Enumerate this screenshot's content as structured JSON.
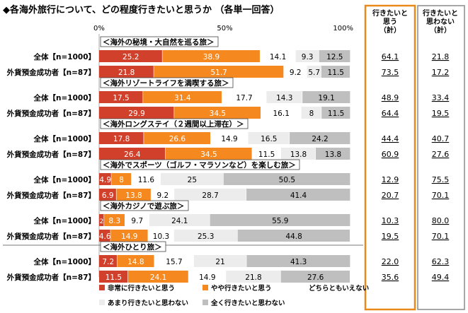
{
  "title": "◆各海外旅行について、どの程度行きたいと思うか （各単一回答）",
  "column_headers": {
    "want": [
      "行きたいと",
      "思う",
      "（計）"
    ],
    "not_want": [
      "行きたいと",
      "思わない",
      "（計）"
    ]
  },
  "colors": {
    "very_want": "#d0402b",
    "somewhat_want": "#f5891f",
    "neutral": "#ffffff",
    "not_much": "#ececec",
    "not_at_all": "#bfbfbf",
    "want_box": "#e8891a",
    "not_want_box": "#8a8a8a"
  },
  "chart_data": {
    "type": "bar",
    "orientation": "horizontal",
    "stacked": "percent",
    "xlim": [
      0,
      100
    ],
    "x_ticks": [
      "0%",
      "50%",
      "100%"
    ],
    "legend_position": "bottom",
    "series_names": [
      "非常に行きたいと思う",
      "やや行きたいと思う",
      "どちらともいえない",
      "あまり行きたいと思わない",
      "全く行きたいと思わない"
    ],
    "groups": [
      {
        "name": "＜海外の秘境・大自然を巡る旅＞",
        "rows": [
          {
            "label": "全体【n=1000】",
            "values": [
              25.2,
              38.9,
              14.1,
              9.3,
              12.5
            ],
            "want_total": "64.1",
            "not_want_total": "21.8"
          },
          {
            "label": "外貨預金成功者【n=87】",
            "values": [
              21.8,
              51.7,
              9.2,
              5.7,
              11.5
            ],
            "want_total": "73.5",
            "not_want_total": "17.2"
          }
        ]
      },
      {
        "name": "＜海外リゾートライフを満喫する旅＞",
        "rows": [
          {
            "label": "全体【n=1000】",
            "values": [
              17.5,
              31.4,
              17.7,
              14.3,
              19.1
            ],
            "want_total": "48.9",
            "not_want_total": "33.4"
          },
          {
            "label": "外貨預金成功者【n=87】",
            "values": [
              29.9,
              34.5,
              16.1,
              8,
              11.5
            ],
            "want_total": "64.4",
            "not_want_total": "19.5"
          }
        ]
      },
      {
        "name": "＜海外ロングステイ（２週間以上滞在）＞",
        "rows": [
          {
            "label": "全体【n=1000】",
            "values": [
              17.8,
              26.6,
              14.9,
              16.5,
              24.2
            ],
            "want_total": "44.4",
            "not_want_total": "40.7"
          },
          {
            "label": "外貨預金成功者【n=87】",
            "values": [
              26.4,
              34.5,
              11.5,
              13.8,
              13.8
            ],
            "want_total": "60.9",
            "not_want_total": "27.6"
          }
        ]
      },
      {
        "name": "＜海外でスポーツ（ゴルフ・マラソンなど）を楽しむ旅＞",
        "rows": [
          {
            "label": "全体【n=1000】",
            "values": [
              4.9,
              8.0,
              11.6,
              25.0,
              50.5
            ],
            "want_total": "12.9",
            "not_want_total": "75.5"
          },
          {
            "label": "外貨預金成功者【n=87】",
            "values": [
              6.9,
              13.8,
              9.2,
              28.7,
              41.4
            ],
            "want_total": "20.7",
            "not_want_total": "70.1"
          }
        ]
      },
      {
        "name": "＜海外カジノで遊ぶ旅＞",
        "rows": [
          {
            "label": "全体【n=1000】",
            "values": [
              2.0,
              8.3,
              9.7,
              24.1,
              55.9
            ],
            "want_total": "10.3",
            "not_want_total": "80.0"
          },
          {
            "label": "外貨預金成功者【n=87】",
            "values": [
              4.6,
              14.9,
              10.3,
              25.3,
              44.8
            ],
            "want_total": "19.5",
            "not_want_total": "70.1"
          }
        ]
      },
      {
        "name": "＜海外ひとり旅＞",
        "rows": [
          {
            "label": "全体【n=1000】",
            "values": [
              7.2,
              14.8,
              15.7,
              21.0,
              41.3
            ],
            "want_total": "22.0",
            "not_want_total": "62.3"
          },
          {
            "label": "外貨預金成功者【n=87】",
            "values": [
              11.5,
              24.1,
              14.9,
              21.8,
              27.6
            ],
            "want_total": "35.6",
            "not_want_total": "49.4"
          }
        ]
      }
    ]
  }
}
